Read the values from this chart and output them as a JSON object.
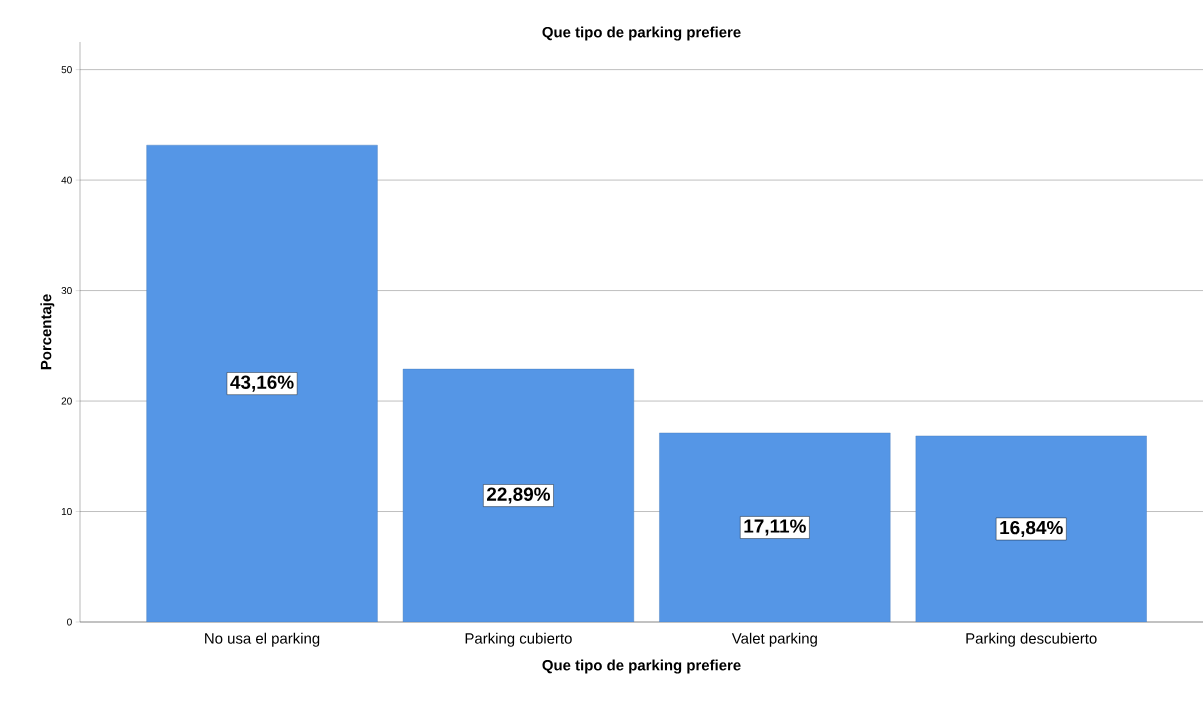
{
  "chart_data": {
    "type": "bar",
    "title": "Que tipo de parking prefiere",
    "xlabel": "Que tipo de parking prefiere",
    "ylabel": "Porcentaje",
    "categories": [
      "No usa el parking",
      "Parking cubierto",
      "Valet parking",
      "Parking descubierto"
    ],
    "values": [
      43.16,
      22.89,
      17.11,
      16.84
    ],
    "value_labels": [
      "43,16%",
      "22,89%",
      "17,11%",
      "16,84%"
    ],
    "color": "#5596e6",
    "ylim": [
      0,
      52.5
    ],
    "yticks": [
      0,
      10,
      20,
      30,
      40,
      50
    ],
    "grid": "y"
  }
}
